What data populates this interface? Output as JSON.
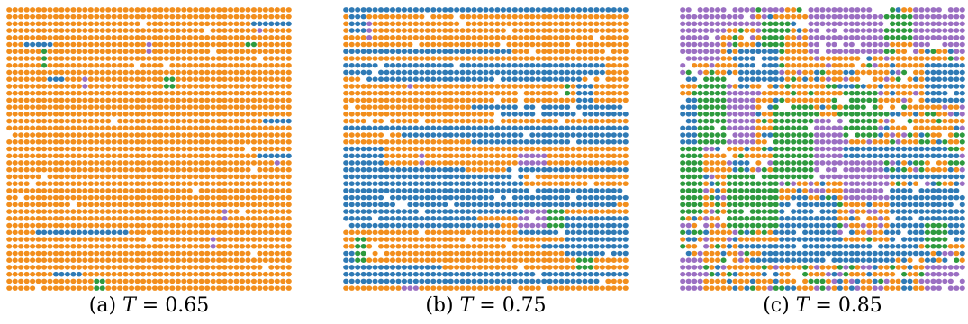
{
  "colors": {
    "orange": "#f28e1c",
    "blue": "#2f7ab5",
    "green": "#2e9a3e",
    "purple": "#9b6fc2",
    "background": "#ffffff"
  },
  "panels": [
    {
      "label": "(a)",
      "symbol": "T",
      "equals": " = ",
      "value": "0.65",
      "seed": 11,
      "background": "orange",
      "rows": [
        {
          "row": 2,
          "c0": 42,
          "c1": 48,
          "color": "blue"
        },
        {
          "row": 5,
          "c0": 3,
          "c1": 7,
          "color": "blue"
        },
        {
          "row": 5,
          "c0": 41,
          "c1": 42,
          "color": "green"
        },
        {
          "row": 10,
          "c0": 7,
          "c1": 9,
          "color": "blue"
        },
        {
          "row": 16,
          "c0": 44,
          "c1": 50,
          "color": "blue"
        },
        {
          "row": 21,
          "c0": 43,
          "c1": 49,
          "color": "blue"
        },
        {
          "row": 32,
          "c0": 5,
          "c1": 20,
          "color": "blue"
        },
        {
          "row": 38,
          "c0": 8,
          "c1": 12,
          "color": "blue"
        }
      ],
      "boxes": [
        {
          "r0": 6,
          "r1": 8,
          "c0": 6,
          "c1": 6,
          "color": "green"
        },
        {
          "r0": 10,
          "r1": 11,
          "c0": 27,
          "c1": 28,
          "color": "green"
        },
        {
          "r0": 10,
          "r1": 11,
          "c0": 13,
          "c1": 13,
          "color": "purple"
        },
        {
          "r0": 2,
          "r1": 3,
          "c0": 43,
          "c1": 43,
          "color": "purple"
        },
        {
          "r0": 5,
          "r1": 6,
          "c0": 24,
          "c1": 24,
          "color": "purple"
        },
        {
          "r0": 21,
          "r1": 22,
          "c0": 46,
          "c1": 46,
          "color": "purple"
        },
        {
          "r0": 29,
          "r1": 30,
          "c0": 37,
          "c1": 37,
          "color": "purple"
        },
        {
          "r0": 33,
          "r1": 34,
          "c0": 35,
          "c1": 35,
          "color": "purple"
        },
        {
          "r0": 39,
          "r1": 40,
          "c0": 15,
          "c1": 16,
          "color": "green"
        }
      ],
      "mix": [],
      "holes": 0.012
    },
    {
      "label": "(b)",
      "symbol": "T",
      "equals": " = ",
      "value": "0.75",
      "seed": 23,
      "background": "orange",
      "rows": [
        {
          "row": 0,
          "c0": 0,
          "c1": 48,
          "color": "blue"
        },
        {
          "row": 6,
          "c0": 0,
          "c1": 28,
          "color": "blue"
        },
        {
          "row": 8,
          "c0": 0,
          "c1": 44,
          "color": "blue"
        },
        {
          "row": 9,
          "c0": 0,
          "c1": 44,
          "color": "blue"
        },
        {
          "row": 10,
          "c0": 4,
          "c1": 40,
          "color": "blue"
        },
        {
          "row": 14,
          "c0": 22,
          "c1": 48,
          "color": "blue"
        },
        {
          "row": 15,
          "c0": 26,
          "c1": 48,
          "color": "blue"
        },
        {
          "row": 17,
          "c0": 0,
          "c1": 48,
          "color": "blue"
        },
        {
          "row": 18,
          "c0": 10,
          "c1": 40,
          "color": "blue"
        },
        {
          "row": 23,
          "c0": 28,
          "c1": 48,
          "color": "blue"
        },
        {
          "row": 26,
          "c0": 0,
          "c1": 48,
          "color": "blue"
        },
        {
          "row": 27,
          "c0": 0,
          "c1": 48,
          "color": "blue"
        },
        {
          "row": 28,
          "c0": 0,
          "c1": 46,
          "color": "blue"
        },
        {
          "row": 29,
          "c0": 0,
          "c1": 30,
          "color": "blue"
        },
        {
          "row": 30,
          "c0": 0,
          "c1": 22,
          "color": "blue"
        },
        {
          "row": 31,
          "c0": 0,
          "c1": 26,
          "color": "blue"
        },
        {
          "row": 32,
          "c0": 30,
          "c1": 48,
          "color": "blue"
        },
        {
          "row": 34,
          "c0": 34,
          "c1": 48,
          "color": "blue"
        },
        {
          "row": 37,
          "c0": 0,
          "c1": 16,
          "color": "blue"
        },
        {
          "row": 38,
          "c0": 0,
          "c1": 48,
          "color": "blue"
        },
        {
          "row": 39,
          "c0": 0,
          "c1": 44,
          "color": "blue"
        }
      ],
      "boxes": [
        {
          "r0": 1,
          "r1": 3,
          "c0": 1,
          "c1": 3,
          "color": "blue"
        },
        {
          "r0": 2,
          "r1": 4,
          "c0": 4,
          "c1": 4,
          "color": "purple"
        },
        {
          "r0": 10,
          "r1": 11,
          "c0": 11,
          "c1": 11,
          "color": "purple"
        },
        {
          "r0": 11,
          "r1": 14,
          "c0": 40,
          "c1": 42,
          "color": "blue"
        },
        {
          "r0": 11,
          "r1": 12,
          "c0": 38,
          "c1": 38,
          "color": "green"
        },
        {
          "r0": 17,
          "r1": 19,
          "c0": 22,
          "c1": 48,
          "color": "blue"
        },
        {
          "r0": 20,
          "r1": 22,
          "c0": 0,
          "c1": 6,
          "color": "blue"
        },
        {
          "r0": 21,
          "r1": 22,
          "c0": 13,
          "c1": 13,
          "color": "purple"
        },
        {
          "r0": 21,
          "r1": 22,
          "c0": 30,
          "c1": 34,
          "color": "purple"
        },
        {
          "r0": 23,
          "r1": 27,
          "c0": 0,
          "c1": 20,
          "color": "blue"
        },
        {
          "r0": 24,
          "r1": 26,
          "c0": 20,
          "c1": 30,
          "color": "blue"
        },
        {
          "r0": 29,
          "r1": 32,
          "c0": 30,
          "c1": 34,
          "color": "purple"
        },
        {
          "r0": 29,
          "r1": 32,
          "c0": 35,
          "c1": 37,
          "color": "green"
        },
        {
          "r0": 30,
          "r1": 35,
          "c0": 38,
          "c1": 48,
          "color": "blue"
        },
        {
          "r0": 33,
          "r1": 36,
          "c0": 2,
          "c1": 3,
          "color": "green"
        },
        {
          "r0": 35,
          "r1": 37,
          "c0": 0,
          "c1": 1,
          "color": "blue"
        },
        {
          "r0": 36,
          "r1": 37,
          "c0": 40,
          "c1": 42,
          "color": "green"
        },
        {
          "r0": 39,
          "r1": 40,
          "c0": 10,
          "c1": 12,
          "color": "purple"
        }
      ],
      "mix": [],
      "holes": 0.03
    },
    {
      "label": "(c)",
      "symbol": "T",
      "equals": " = ",
      "value": "0.85",
      "seed": 37,
      "background": "orange",
      "rows": [
        {
          "row": 20,
          "c0": 28,
          "c1": 44,
          "color": "blue"
        },
        {
          "row": 21,
          "c0": 28,
          "c1": 46,
          "color": "blue"
        },
        {
          "row": 24,
          "c0": 36,
          "c1": 48,
          "color": "blue"
        },
        {
          "row": 34,
          "c0": 10,
          "c1": 40,
          "color": "blue"
        },
        {
          "row": 35,
          "c0": 14,
          "c1": 40,
          "color": "blue"
        },
        {
          "row": 36,
          "c0": 12,
          "c1": 36,
          "color": "blue"
        }
      ],
      "boxes": [
        {
          "r0": 0,
          "r1": 7,
          "c0": 0,
          "c1": 6,
          "color": "purple"
        },
        {
          "r0": 0,
          "r1": 2,
          "c0": 6,
          "c1": 12,
          "color": "purple"
        },
        {
          "r0": 0,
          "r1": 6,
          "c0": 22,
          "c1": 34,
          "color": "purple"
        },
        {
          "r0": 0,
          "r1": 5,
          "c0": 40,
          "c1": 48,
          "color": "purple"
        },
        {
          "r0": 1,
          "r1": 4,
          "c0": 35,
          "c1": 39,
          "color": "green"
        },
        {
          "r0": 2,
          "r1": 5,
          "c0": 14,
          "c1": 17,
          "color": "green"
        },
        {
          "r0": 6,
          "r1": 10,
          "c0": 10,
          "c1": 16,
          "color": "blue"
        },
        {
          "r0": 8,
          "r1": 13,
          "c0": 42,
          "c1": 48,
          "color": "blue"
        },
        {
          "r0": 10,
          "r1": 19,
          "c0": 3,
          "c1": 7,
          "color": "green"
        },
        {
          "r0": 14,
          "r1": 19,
          "c0": 0,
          "c1": 2,
          "color": "blue"
        },
        {
          "r0": 12,
          "r1": 19,
          "c0": 8,
          "c1": 12,
          "color": "purple"
        },
        {
          "r0": 14,
          "r1": 24,
          "c0": 16,
          "c1": 22,
          "color": "green"
        },
        {
          "r0": 16,
          "r1": 24,
          "c0": 23,
          "c1": 27,
          "color": "purple"
        },
        {
          "r0": 12,
          "r1": 18,
          "c0": 28,
          "c1": 33,
          "color": "green"
        },
        {
          "r0": 20,
          "r1": 29,
          "c0": 0,
          "c1": 3,
          "color": "green"
        },
        {
          "r0": 24,
          "r1": 31,
          "c0": 8,
          "c1": 16,
          "color": "green"
        },
        {
          "r0": 22,
          "r1": 27,
          "c0": 28,
          "c1": 34,
          "color": "purple"
        },
        {
          "r0": 26,
          "r1": 33,
          "c0": 36,
          "c1": 48,
          "color": "blue"
        },
        {
          "r0": 28,
          "r1": 33,
          "c0": 17,
          "c1": 26,
          "color": "blue"
        },
        {
          "r0": 31,
          "r1": 34,
          "c0": 42,
          "c1": 45,
          "color": "green"
        },
        {
          "r0": 36,
          "r1": 40,
          "c0": 0,
          "c1": 3,
          "color": "purple"
        },
        {
          "r0": 37,
          "r1": 40,
          "c0": 42,
          "c1": 48,
          "color": "purple"
        }
      ],
      "mix": [
        "orange",
        "blue",
        "green",
        "purple"
      ],
      "holes": 0.05
    }
  ]
}
